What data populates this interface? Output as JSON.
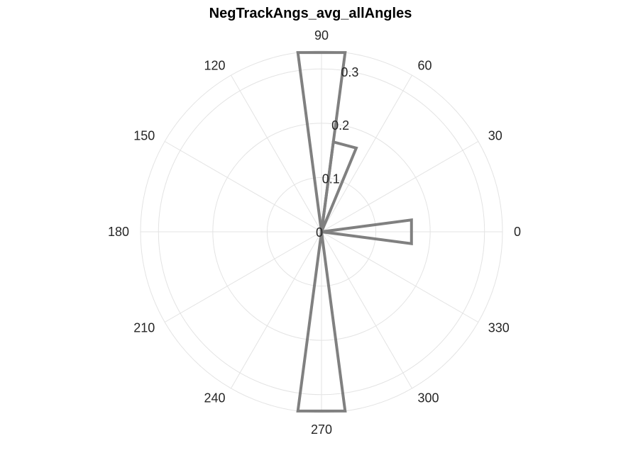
{
  "chart_data": {
    "type": "polar-histogram",
    "title": "NegTrackAngs_avg_allAngles",
    "angle_unit": "degrees",
    "angle_ticks": [
      0,
      30,
      60,
      90,
      120,
      150,
      180,
      210,
      240,
      270,
      300,
      330
    ],
    "angle_tick_labels": [
      "0",
      "30",
      "60",
      "90",
      "120",
      "150",
      "180",
      "210",
      "240",
      "270",
      "300",
      "330"
    ],
    "r_ticks": [
      0,
      0.1,
      0.2,
      0.3
    ],
    "r_tick_labels": [
      "0",
      "0.1",
      "0.2",
      "0.3"
    ],
    "r_max": 0.333,
    "r_label_angle": 80,
    "grid": true,
    "bins": [
      {
        "start": -7.5,
        "end": 7.5,
        "value": 0.167
      },
      {
        "start": 67.5,
        "end": 82.5,
        "value": 0.167
      },
      {
        "start": 82.5,
        "end": 97.5,
        "value": 0.333
      },
      {
        "start": 262.5,
        "end": 277.5,
        "value": 0.333
      }
    ],
    "line_color": "#808080",
    "grid_color": "#e3e3e3"
  }
}
